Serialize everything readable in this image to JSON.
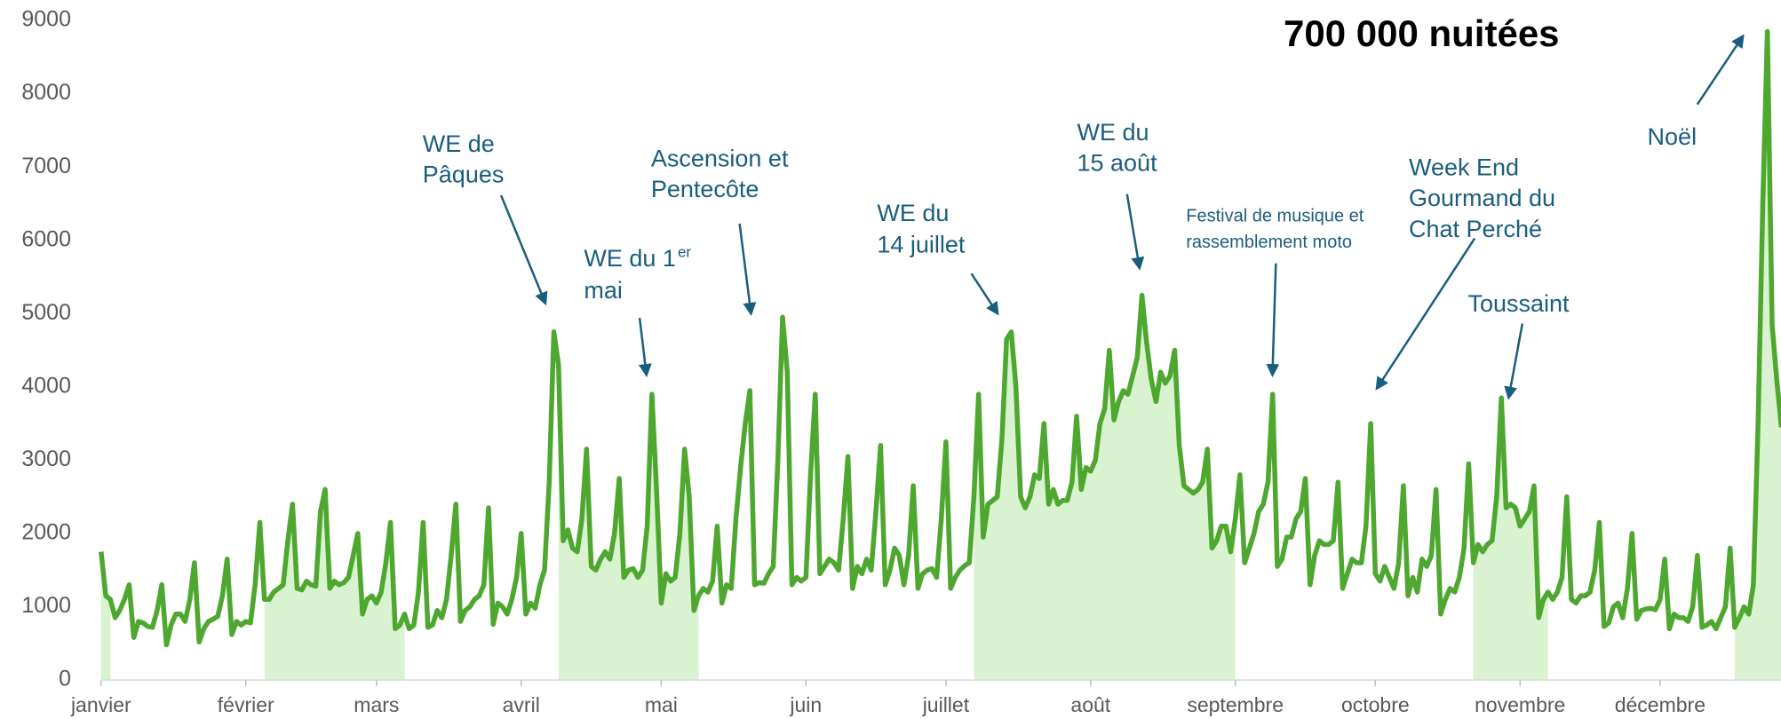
{
  "chart_data": {
    "type": "line",
    "title": "700 000 nuitées",
    "color": "#4ea72e",
    "shade_color": "#d9f2d0",
    "shaded_ranges": [
      [
        0,
        2
      ],
      [
        35,
        65
      ],
      [
        98,
        128
      ],
      [
        187,
        243
      ],
      [
        294,
        310
      ],
      [
        350,
        360
      ]
    ],
    "xlim": [
      0,
      360
    ],
    "xticks": [
      {
        "value": 0,
        "label": "janvier"
      },
      {
        "value": 31,
        "label": "février"
      },
      {
        "value": 59,
        "label": "mars"
      },
      {
        "value": 90,
        "label": "avril"
      },
      {
        "value": 120,
        "label": "mai"
      },
      {
        "value": 151,
        "label": "juin"
      },
      {
        "value": 181,
        "label": "juillet"
      },
      {
        "value": 212,
        "label": "août"
      },
      {
        "value": 243,
        "label": "septembre"
      },
      {
        "value": 273,
        "label": "octobre"
      },
      {
        "value": 304,
        "label": "novembre"
      },
      {
        "value": 334,
        "label": "décembre"
      }
    ],
    "ylim": [
      0,
      9000
    ],
    "yticks": [
      0,
      1000,
      2000,
      3000,
      4000,
      5000,
      6000,
      7000,
      8000,
      9000
    ],
    "annotations": [
      {
        "lines": [
          "WE de",
          "Pâques"
        ]
      },
      {
        "lines": [
          "WE du 1",
          "mai"
        ],
        "sup": "er"
      },
      {
        "lines": [
          "Ascension et",
          "Pentecôte"
        ]
      },
      {
        "lines": [
          "WE du",
          "14 juillet"
        ]
      },
      {
        "lines": [
          "WE du",
          "15 août"
        ]
      },
      {
        "lines": [
          "Festival de musique et",
          "rassemblement moto"
        ]
      },
      {
        "lines": [
          "Week End",
          "Gourmand du",
          "Chat Perché"
        ]
      },
      {
        "lines": [
          "Toussaint"
        ]
      },
      {
        "lines": [
          "Noël"
        ]
      }
    ],
    "values": [
      1750,
      1150,
      1100,
      850,
      950,
      1100,
      1300,
      580,
      800,
      780,
      730,
      720,
      950,
      1300,
      480,
      750,
      900,
      900,
      800,
      1100,
      1600,
      520,
      700,
      800,
      830,
      870,
      1150,
      1650,
      620,
      800,
      750,
      800,
      780,
      1300,
      2150,
      1100,
      1100,
      1200,
      1250,
      1300,
      1900,
      2400,
      1250,
      1230,
      1350,
      1300,
      1280,
      2300,
      2600,
      1250,
      1350,
      1300,
      1330,
      1400,
      1700,
      2000,
      900,
      1100,
      1150,
      1050,
      1200,
      1600,
      2150,
      700,
      750,
      900,
      700,
      750,
      1200,
      2150,
      720,
      750,
      950,
      850,
      1100,
      1700,
      2400,
      800,
      950,
      1000,
      1100,
      1150,
      1300,
      2350,
      760,
      1050,
      1000,
      900,
      1100,
      1400,
      2000,
      900,
      1050,
      980,
      1300,
      1500,
      2700,
      4750,
      4300,
      1900,
      2050,
      1800,
      1750,
      2200,
      3150,
      1550,
      1500,
      1650,
      1750,
      1650,
      2000,
      2750,
      1400,
      1500,
      1520,
      1400,
      1500,
      2100,
      3900,
      2600,
      1050,
      1450,
      1350,
      1400,
      2000,
      3150,
      2500,
      950,
      1150,
      1250,
      1200,
      1350,
      2100,
      1050,
      1300,
      1250,
      2200,
      2900,
      3500,
      3950,
      1300,
      1330,
      1320,
      1450,
      1550,
      3000,
      4950,
      4200,
      1300,
      1400,
      1350,
      1400,
      2800,
      3900,
      1450,
      1550,
      1650,
      1600,
      1500,
      2200,
      3050,
      1250,
      1550,
      1450,
      1650,
      1500,
      2300,
      3200,
      1300,
      1500,
      1800,
      1700,
      1300,
      1700,
      2650,
      1250,
      1450,
      1500,
      1520,
      1400,
      2200,
      3250,
      1250,
      1400,
      1500,
      1560,
      1600,
      2500,
      3900,
      1950,
      2400,
      2450,
      2500,
      3300,
      4650,
      4750,
      4000,
      2500,
      2350,
      2500,
      2800,
      2750,
      3500,
      2400,
      2600,
      2400,
      2450,
      2450,
      2700,
      3600,
      2600,
      2900,
      2850,
      3000,
      3500,
      3700,
      4500,
      3550,
      3800,
      3950,
      3900,
      4150,
      4400,
      5250,
      4600,
      4100,
      3800,
      4200,
      4050,
      4150,
      4500,
      3200,
      2650,
      2600,
      2550,
      2600,
      2700,
      3150,
      1800,
      1900,
      2100,
      2100,
      1750,
      2200,
      2800,
      1600,
      1800,
      2000,
      2300,
      2400,
      2700,
      3900,
      1550,
      1650,
      1950,
      1950,
      2200,
      2300,
      2750,
      1300,
      1700,
      1900,
      1850,
      1850,
      1900,
      2700,
      1250,
      1450,
      1650,
      1600,
      1600,
      2100,
      3500,
      1450,
      1350,
      1550,
      1400,
      1250,
      1600,
      2650,
      1150,
      1400,
      1200,
      1650,
      1550,
      1700,
      2600,
      900,
      1100,
      1250,
      1200,
      1400,
      1800,
      2950,
      1600,
      1850,
      1750,
      1850,
      1900,
      2500,
      3850,
      2350,
      2400,
      2350,
      2100,
      2200,
      2300,
      2650,
      850,
      1100,
      1200,
      1100,
      1200,
      1400,
      2500,
      1100,
      1050,
      1150,
      1150,
      1200,
      1500,
      2150,
      730,
      780,
      1000,
      1050,
      850,
      1250,
      2000,
      830,
      950,
      970,
      980,
      960,
      1100,
      1650,
      700,
      900,
      850,
      850,
      800,
      1000,
      1700,
      720,
      750,
      800,
      700,
      850,
      1000,
      1800,
      720,
      850,
      1000,
      900,
      1300,
      3500,
      6500,
      8850,
      4850,
      4100,
      3450
    ]
  }
}
